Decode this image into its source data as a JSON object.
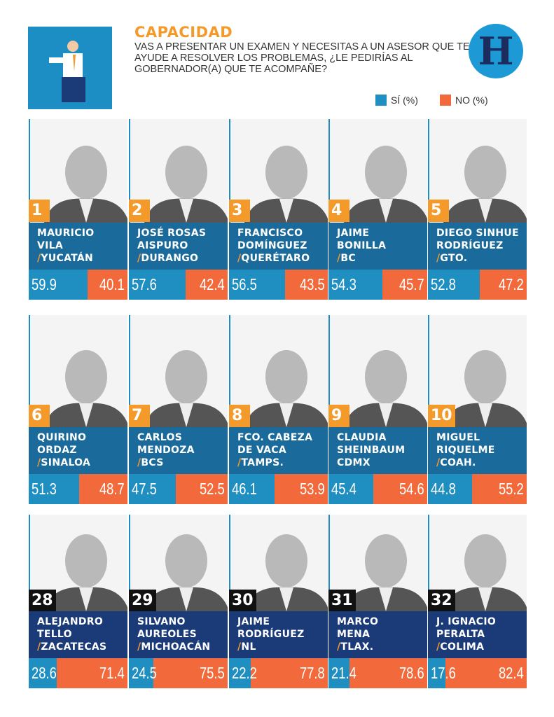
{
  "header": {
    "title": "CAPACIDAD",
    "question": "VAS A PRESENTAR UN EXAMEN Y NECESITAS A UN ASESOR QUE TE AYUDE A RESOLVER LOS PROBLEMAS, ¿LE PEDIRÍAS AL GOBERNADOR(A) QUE TE ACOMPAÑE?",
    "logo": "H"
  },
  "legend": {
    "si": "SÍ (%)",
    "no": "NO (%)"
  },
  "colors": {
    "si": "#1e8fc0",
    "no": "#f26a3c",
    "rank_top": "#f39a2b",
    "rank_bottom": "#111111",
    "name_top": "#1a6a9c",
    "name_bottom": "#1b3a78",
    "accent": "#f39a2b"
  },
  "chart_data": {
    "type": "bar",
    "title": "CAPACIDAD",
    "xlabel": "",
    "ylabel": "%",
    "ylim": [
      0,
      100
    ],
    "legend": [
      "SÍ (%)",
      "NO (%)"
    ],
    "rows": [
      {
        "rank": "1",
        "name1": "MAURICIO",
        "name2": "VILA",
        "state": "YUCATÁN",
        "slash": true,
        "si": "59.9",
        "no": "40.1"
      },
      {
        "rank": "2",
        "name1": "JOSÉ ROSAS",
        "name2": "AISPURO",
        "state": "DURANGO",
        "slash": true,
        "si": "57.6",
        "no": "42.4"
      },
      {
        "rank": "3",
        "name1": "FRANCISCO",
        "name2": "DOMÍNGUEZ",
        "state": "QUERÉTARO",
        "slash": true,
        "si": "56.5",
        "no": "43.5"
      },
      {
        "rank": "4",
        "name1": "JAIME",
        "name2": "BONILLA",
        "state": "BC",
        "slash": true,
        "si": "54.3",
        "no": "45.7"
      },
      {
        "rank": "5",
        "name1": "DIEGO SINHUE",
        "name2": "RODRÍGUEZ",
        "state": "GTO.",
        "slash": true,
        "si": "52.8",
        "no": "47.2"
      },
      {
        "rank": "6",
        "name1": "QUIRINO",
        "name2": "ORDAZ",
        "state": "SINALOA",
        "slash": true,
        "si": "51.3",
        "no": "48.7"
      },
      {
        "rank": "7",
        "name1": "CARLOS",
        "name2": "MENDOZA",
        "state": "BCS",
        "slash": true,
        "si": "47.5",
        "no": "52.5"
      },
      {
        "rank": "8",
        "name1": "FCO. CABEZA",
        "name2": "DE VACA",
        "state": "TAMPS.",
        "slash": true,
        "si": "46.1",
        "no": "53.9"
      },
      {
        "rank": "9",
        "name1": "CLAUDIA",
        "name2": "SHEINBAUM",
        "state": "CDMX",
        "slash": false,
        "si": "45.4",
        "no": "54.6"
      },
      {
        "rank": "10",
        "name1": "MIGUEL",
        "name2": "RIQUELME",
        "state": "COAH.",
        "slash": true,
        "si": "44.8",
        "no": "55.2"
      },
      {
        "rank": "28",
        "name1": "ALEJANDRO",
        "name2": "TELLO",
        "state": "ZACATECAS",
        "slash": true,
        "si": "28.6",
        "no": "71.4"
      },
      {
        "rank": "29",
        "name1": "SILVANO",
        "name2": "AUREOLES",
        "state": "MICHOACÁN",
        "slash": true,
        "si": "24.5",
        "no": "75.5"
      },
      {
        "rank": "30",
        "name1": "JAIME",
        "name2": "RODRÍGUEZ",
        "state": "NL",
        "slash": true,
        "si": "22.2",
        "no": "77.8"
      },
      {
        "rank": "31",
        "name1": "MARCO",
        "name2": "MENA",
        "state": "TLAX.",
        "slash": true,
        "si": "21.4",
        "no": "78.6"
      },
      {
        "rank": "32",
        "name1": "J. IGNACIO",
        "name2": "PERALTA",
        "state": "COLIMA",
        "slash": true,
        "si": "17.6",
        "no": "82.4"
      }
    ]
  }
}
